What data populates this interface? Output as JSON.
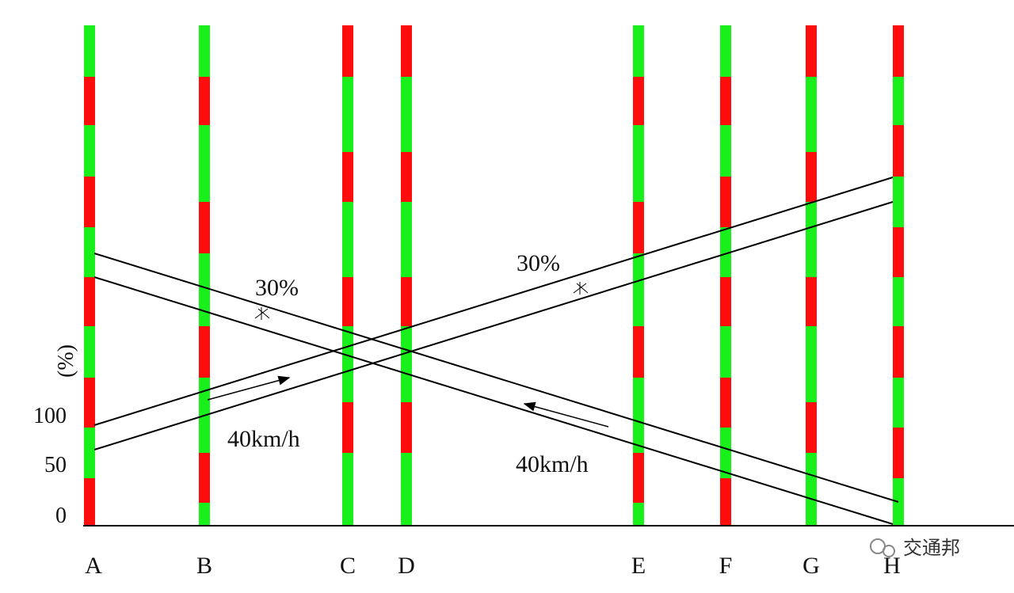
{
  "intersections": [
    "A",
    "B",
    "C",
    "D",
    "E",
    "F",
    "G",
    "H"
  ],
  "y_axis": {
    "label": "(%)",
    "ticks": [
      "100",
      "50",
      "0"
    ]
  },
  "bands": [
    {
      "bandwidth": "30%",
      "speed": "40km/h"
    },
    {
      "bandwidth": "30%",
      "speed": "40km/h"
    }
  ],
  "watermark": "交通邦"
}
